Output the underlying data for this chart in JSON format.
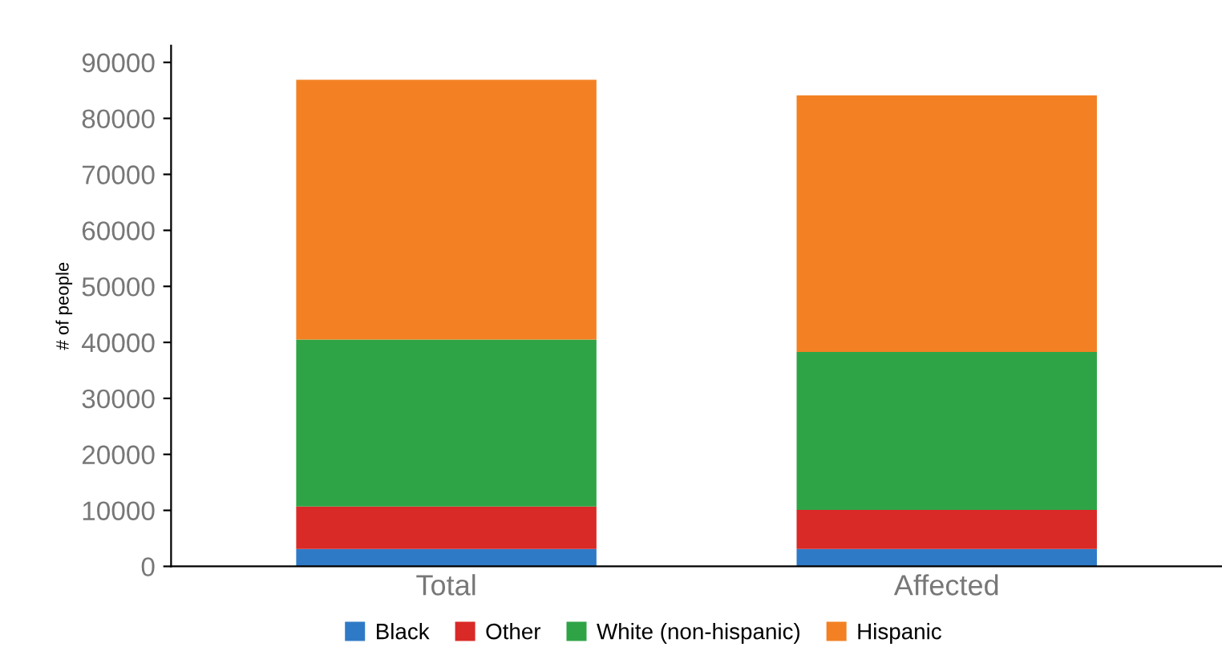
{
  "chart_data": {
    "type": "bar",
    "stacked": true,
    "ylabel": "# of people",
    "categories": [
      "Total",
      "Affected"
    ],
    "series": [
      {
        "name": "Black",
        "color": "#2f7ac6",
        "values": [
          3100,
          3100
        ]
      },
      {
        "name": "Other",
        "color": "#d92a27",
        "values": [
          7600,
          7000
        ]
      },
      {
        "name": "White (non-hispanic)",
        "color": "#2ea446",
        "values": [
          29800,
          28200
        ]
      },
      {
        "name": "Hispanic",
        "color": "#f38123",
        "values": [
          46400,
          45800
        ]
      }
    ],
    "ylim": [
      0,
      93000
    ],
    "yticks": [
      0,
      10000,
      20000,
      30000,
      40000,
      50000,
      60000,
      70000,
      80000,
      90000
    ],
    "grid": false,
    "legend": "bottom"
  }
}
